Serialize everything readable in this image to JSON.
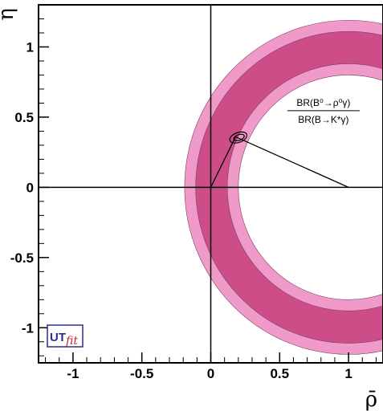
{
  "chart_data": {
    "type": "contour",
    "xlabel": "ρ̄",
    "ylabel": "η̄",
    "xlim": [
      -1.25,
      1.25
    ],
    "ylim": [
      -1.25,
      1.3
    ],
    "grid": false,
    "x_ticks": [
      {
        "value": -1,
        "label": "-1"
      },
      {
        "value": -0.5,
        "label": "-0.5"
      },
      {
        "value": 0,
        "label": "0"
      },
      {
        "value": 0.5,
        "label": "0.5"
      },
      {
        "value": 1,
        "label": "1"
      }
    ],
    "y_ticks": [
      {
        "value": 1,
        "label": "1"
      },
      {
        "value": 0.5,
        "label": "0.5"
      },
      {
        "value": 0,
        "label": "0"
      },
      {
        "value": -0.5,
        "label": "-0.5"
      },
      {
        "value": -1,
        "label": "-1"
      }
    ],
    "annulus": {
      "center": [
        1,
        0
      ],
      "outer_95_radius": 1.19,
      "outer_68_radius": 1.11,
      "inner_68_radius": 0.88,
      "inner_95_radius": 0.8,
      "color_68": "#cc4d88",
      "color_95": "#ef9ac8",
      "edge_color": "#7a3f62"
    },
    "triangle": {
      "apex": [
        0.18,
        0.36
      ],
      "vertices": [
        [
          0,
          0
        ],
        [
          1,
          0
        ],
        [
          0.18,
          0.36
        ]
      ]
    },
    "apex_contours": [
      {
        "center": [
          0.2,
          0.355
        ],
        "rx": 0.065,
        "ry": 0.035,
        "angle": -20
      },
      {
        "center": [
          0.205,
          0.355
        ],
        "rx": 0.04,
        "ry": 0.02,
        "angle": -20
      }
    ],
    "annotation": {
      "numerator": "BR(B⁰→ρ⁰γ)",
      "denominator": "BR(B→K*γ)",
      "position": [
        0.55,
        0.58
      ]
    },
    "logo": {
      "ut": "UT",
      "fit": "fit",
      "position": "bottom-left"
    }
  }
}
